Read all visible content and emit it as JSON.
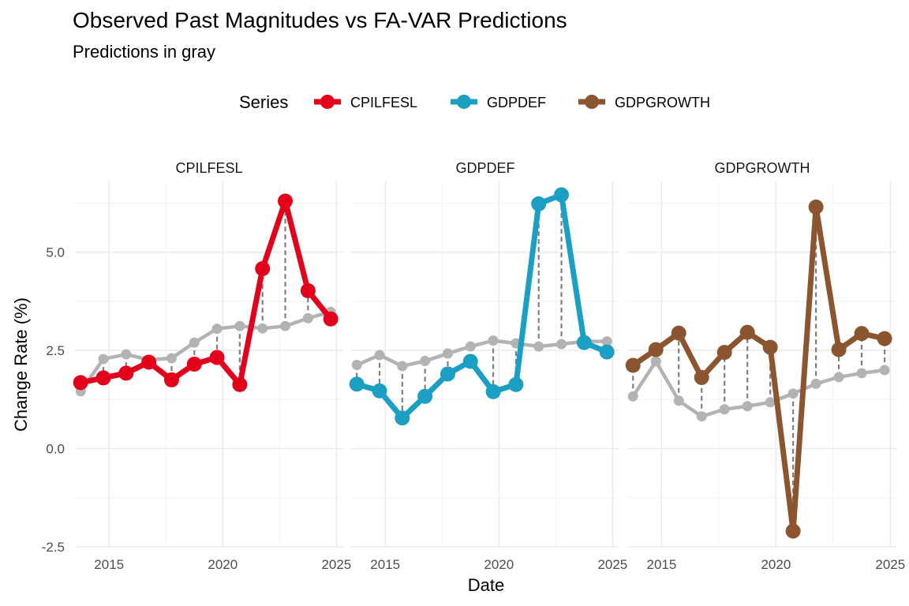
{
  "title": "Observed Past Magnitudes vs FA-VAR Predictions",
  "subtitle": "Predictions in gray",
  "legend": {
    "title": "Series",
    "position": "top",
    "items": [
      {
        "label": "CPILFESL",
        "color": "#E3001B"
      },
      {
        "label": "GDPDEF",
        "color": "#1B9FC3"
      },
      {
        "label": "GDPGROWTH",
        "color": "#8B5530"
      }
    ]
  },
  "chart_data": {
    "type": "line",
    "xlabel": "Date",
    "ylabel": "Change Rate (%)",
    "xlim": [
      2013.5,
      2025.3
    ],
    "ylim": [
      -2.5,
      6.8
    ],
    "x_ticks": [
      2015,
      2020,
      2025
    ],
    "y_ticks": [
      -2.5,
      0.0,
      2.5,
      5.0
    ],
    "y_tick_labels": [
      "-2.5",
      "0.0",
      "2.5",
      "5.0"
    ],
    "grid": true,
    "prediction_color": "#B3B3B3",
    "panels": [
      {
        "name": "CPILFESL",
        "color": "#E3001B",
        "x": [
          2013.75,
          2014.75,
          2015.75,
          2016.75,
          2017.75,
          2018.75,
          2019.75,
          2020.75,
          2021.75,
          2022.75,
          2023.75,
          2024.75
        ],
        "observed": [
          1.68,
          1.8,
          1.92,
          2.2,
          1.75,
          2.15,
          2.32,
          1.63,
          4.58,
          6.3,
          4.02,
          3.3
        ],
        "predicted": [
          1.46,
          2.28,
          2.4,
          2.26,
          2.3,
          2.7,
          3.05,
          3.12,
          3.06,
          3.12,
          3.32,
          3.48
        ]
      },
      {
        "name": "GDPDEF",
        "color": "#1B9FC3",
        "x": [
          2013.75,
          2014.75,
          2015.75,
          2016.75,
          2017.75,
          2018.75,
          2019.75,
          2020.75,
          2021.75,
          2022.75,
          2023.75,
          2024.75
        ],
        "observed": [
          1.64,
          1.47,
          0.78,
          1.33,
          1.9,
          2.22,
          1.45,
          1.63,
          6.23,
          6.46,
          2.7,
          2.46
        ],
        "predicted": [
          2.13,
          2.38,
          2.1,
          2.23,
          2.42,
          2.6,
          2.75,
          2.68,
          2.6,
          2.66,
          2.73,
          2.73
        ]
      },
      {
        "name": "GDPGROWTH",
        "color": "#8B5530",
        "x": [
          2013.75,
          2014.75,
          2015.75,
          2016.75,
          2017.75,
          2018.75,
          2019.75,
          2020.75,
          2021.75,
          2022.75,
          2023.75,
          2024.75
        ],
        "observed": [
          2.12,
          2.52,
          2.94,
          1.81,
          2.45,
          2.96,
          2.58,
          -2.1,
          6.15,
          2.52,
          2.93,
          2.8
        ],
        "predicted": [
          1.33,
          2.22,
          1.22,
          0.82,
          1.0,
          1.08,
          1.18,
          1.4,
          1.65,
          1.82,
          1.92,
          2.0
        ]
      }
    ]
  }
}
